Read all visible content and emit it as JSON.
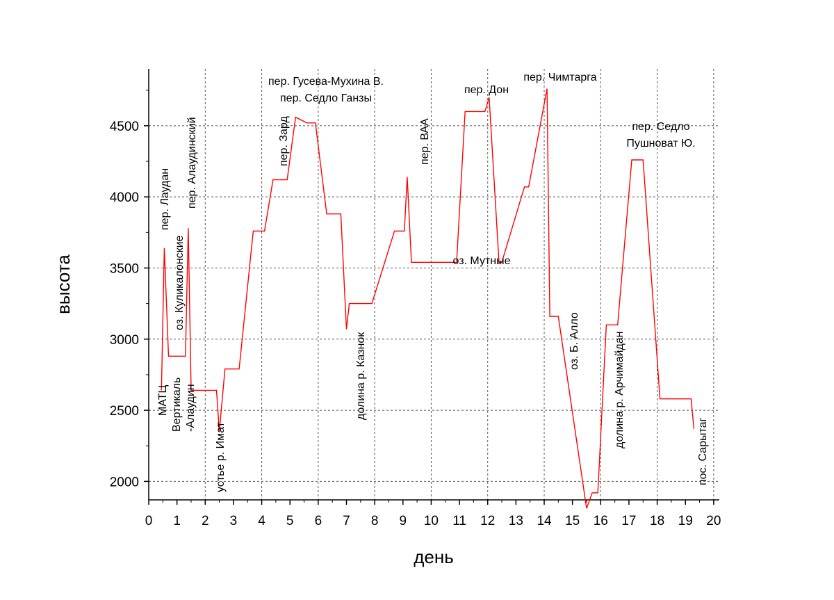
{
  "chart_data": {
    "type": "line",
    "title": "",
    "xlabel": "день",
    "ylabel": "высота",
    "xlim": [
      0,
      20.2
    ],
    "ylim": [
      1870,
      4900
    ],
    "x_ticks": [
      0,
      1,
      2,
      3,
      4,
      5,
      6,
      7,
      8,
      9,
      10,
      11,
      12,
      13,
      14,
      15,
      16,
      17,
      18,
      19,
      20
    ],
    "y_ticks": [
      2000,
      2500,
      3000,
      3500,
      4000,
      4500
    ],
    "grid": true,
    "legend": "none",
    "series": [
      {
        "color": "#ff0000",
        "x": [
          0.45,
          0.55,
          0.7,
          1.3,
          1.4,
          1.5,
          1.6,
          2.4,
          2.5,
          2.7,
          3.2,
          3.7,
          4.1,
          4.4,
          4.9,
          5.2,
          5.6,
          5.9,
          6.3,
          6.8,
          7.0,
          7.1,
          7.9,
          8.7,
          9.05,
          9.15,
          9.3,
          10.9,
          11.2,
          11.9,
          12.05,
          12.4,
          12.5,
          13.3,
          13.45,
          14.1,
          14.2,
          14.5,
          15.5,
          15.7,
          15.9,
          16.2,
          16.6,
          17.1,
          17.5,
          18.1,
          18.3,
          18.8,
          19.0,
          19.2,
          19.3
        ],
        "y": [
          2640,
          3640,
          2880,
          2880,
          3780,
          2640,
          2640,
          2640,
          2350,
          2790,
          2790,
          3760,
          3760,
          4120,
          4120,
          4560,
          4520,
          4520,
          3880,
          3880,
          3070,
          3250,
          3250,
          3760,
          3760,
          4140,
          3540,
          3540,
          4600,
          4600,
          4700,
          3540,
          3540,
          4070,
          4070,
          4760,
          3160,
          3160,
          1810,
          1920,
          1920,
          3100,
          3100,
          4260,
          4260,
          2580,
          2580,
          2580,
          2580,
          2580,
          2370
        ]
      }
    ],
    "annotations": [
      "МАТЦ",
      "пер. Лаудан",
      "оз. Куликалонские",
      "Вертикаль\n-Алаудин",
      "пер. Алаудинский",
      "устье р. Имат",
      "пер. Зард",
      "пер. Гусева-Мухина В.",
      "пер. Седло Ганзы",
      "долина р. Казнок",
      "пер. ВАА",
      "оз. Мутные",
      "пер. Дон",
      "пер. Чимтарга",
      "оз. Б. Алло",
      "долина р. Арчимайдан",
      "пер. Седло\nПушноват Ю.",
      "пос. Сарытаг"
    ]
  }
}
